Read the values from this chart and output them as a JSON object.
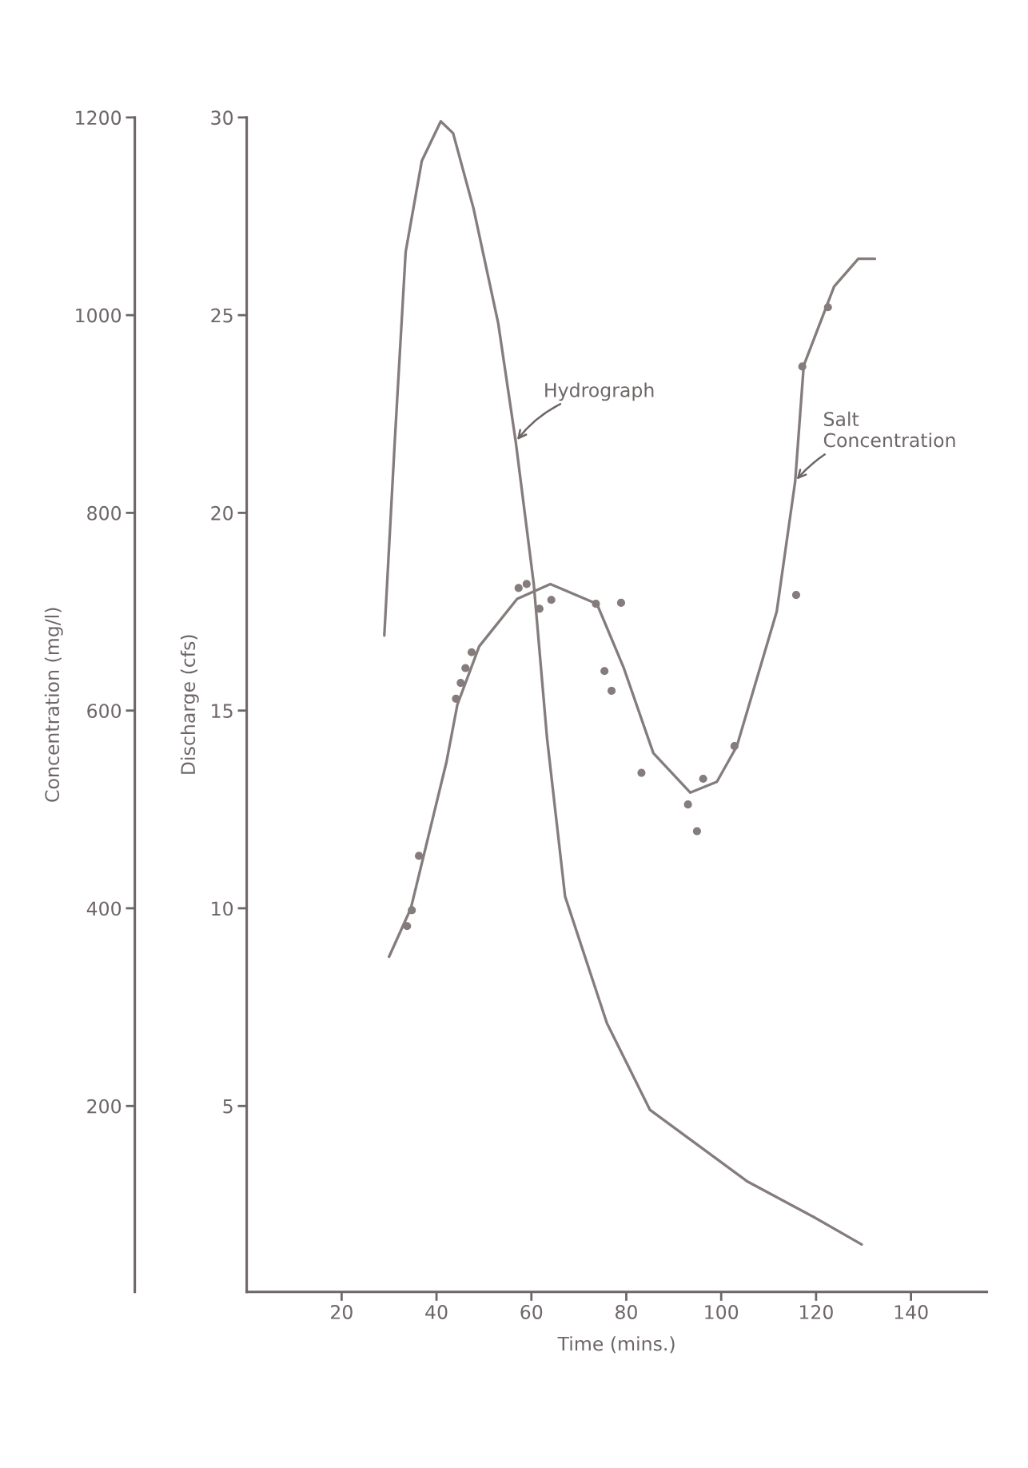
{
  "chart_data": {
    "type": "line",
    "xlabel": "Time (mins.)",
    "ylabel": "Concentration (mg/l)",
    "y2label": "Discharge (cfs)",
    "xlim": [
      0,
      156
    ],
    "xticks": [
      20,
      40,
      60,
      80,
      100,
      120,
      140
    ],
    "ylim": [
      12,
      1200
    ],
    "yticks": [
      200,
      400,
      600,
      800,
      1000,
      1200
    ],
    "y2lim": [
      0.3,
      30
    ],
    "y2ticks": [
      5,
      10,
      15,
      20,
      25,
      30
    ],
    "grid": false,
    "legend": false,
    "series": [
      {
        "name": "Hydrograph",
        "type": "line",
        "axis": "y2",
        "color": "#857c7c",
        "marker": "none",
        "x": [
          29.0,
          31.2,
          33.5,
          36.9,
          40.9,
          43.5,
          47.8,
          53.0,
          56.7,
          60.5,
          63.3,
          67.1,
          75.9,
          85.0,
          105.4,
          119.4,
          129.6
        ],
        "values": [
          16.9,
          21.8,
          26.6,
          28.9,
          29.9,
          29.6,
          27.7,
          24.8,
          21.8,
          18.2,
          14.3,
          10.3,
          7.1,
          4.9,
          3.1,
          2.2,
          1.5
        ]
      },
      {
        "name": "Salt Concentration",
        "type": "line",
        "color": "#857c7c",
        "marker": "none",
        "x": [
          30.0,
          34.6,
          42.1,
          44.4,
          49.0,
          57.0,
          64.0,
          73.8,
          79.4,
          85.7,
          93.5,
          99.1,
          103.3,
          111.7,
          115.6,
          117.4,
          123.8,
          128.9,
          132.4
        ],
        "values": [
          351,
          400,
          548,
          606,
          665,
          713,
          728,
          708,
          644,
          557,
          517,
          528,
          564,
          700,
          832,
          949,
          1029,
          1057,
          1057
        ]
      },
      {
        "type": "scatter",
        "color": "#857c7c",
        "marker": "circle",
        "x": [
          47.4,
          46.1,
          45.1,
          44.1,
          36.3,
          34.8,
          33.8,
          115.8,
          102.8,
          96.2,
          94.9,
          93.0,
          83.2,
          78.9,
          76.9,
          75.4,
          73.6,
          64.2,
          61.7,
          59.0,
          57.3,
          122.5,
          117.1
        ],
        "values": [
          659,
          643,
          628,
          612,
          453,
          398,
          382,
          717,
          564,
          531,
          478,
          505,
          537,
          709,
          620,
          640,
          708,
          712,
          703,
          728,
          724,
          1008,
          948
        ]
      }
    ]
  }
}
